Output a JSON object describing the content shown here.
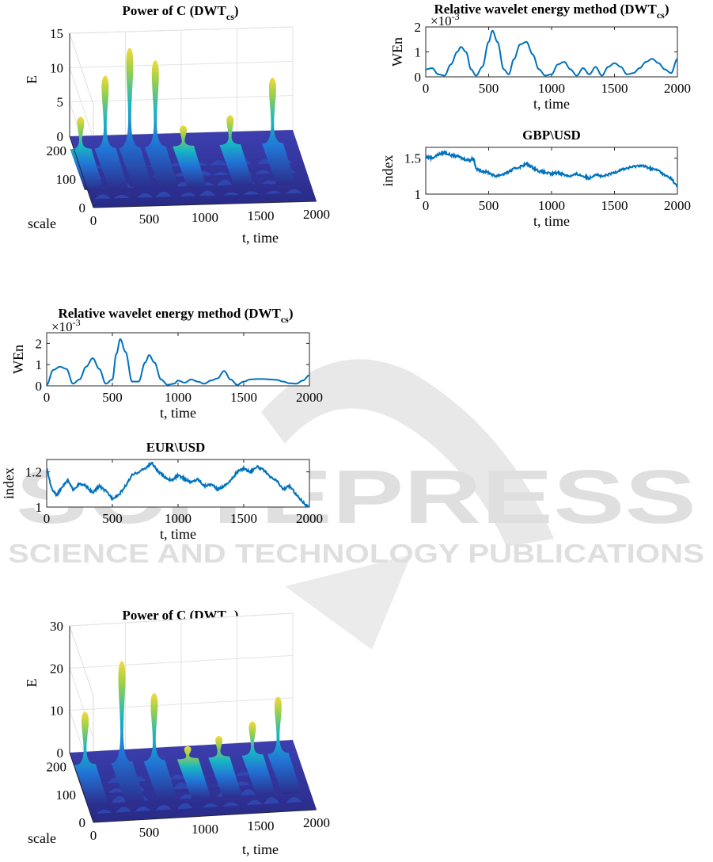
{
  "watermark": {
    "line1": "SCITEPRESS",
    "line2": "SCIENCE AND TECHNOLOGY PUBLICATIONS"
  },
  "chart_data": [
    {
      "id": "surface-top",
      "type": "surface",
      "title": "Power of C (DWT",
      "title_sub": "cs",
      "title_end": ")",
      "xlabel": "t, time",
      "ylabel": "scale",
      "zlabel": "E",
      "xlim": [
        0,
        2000
      ],
      "ylim": [
        0,
        250
      ],
      "zlim": [
        0,
        15
      ],
      "x_ticks": [
        "0",
        "500",
        "1000",
        "1500",
        "2000"
      ],
      "y_ticks": [
        "0",
        "100",
        "200"
      ],
      "z_ticks": [
        "0",
        "5",
        "10",
        "15"
      ],
      "peaks": [
        {
          "t": 60,
          "E": 4.7
        },
        {
          "t": 280,
          "E": 10.6
        },
        {
          "t": 500,
          "E": 14.5
        },
        {
          "t": 730,
          "E": 12.6
        },
        {
          "t": 980,
          "E": 3.0
        },
        {
          "t": 1400,
          "E": 4.3
        },
        {
          "t": 1780,
          "E": 9.6
        }
      ]
    },
    {
      "id": "wen-gbp",
      "type": "line",
      "title": "Relative wavelet energy method (DWT",
      "title_sub": "cs",
      "title_end": ")",
      "ylabel": "WEn",
      "xlabel": "t, time",
      "multiplier_base": "×10",
      "multiplier_exp": "-3",
      "xlim": [
        0,
        2000
      ],
      "ylim": [
        0,
        2
      ],
      "x_ticks": [
        "0",
        "500",
        "1000",
        "1500",
        "2000"
      ],
      "y_ticks": [
        "0",
        "1",
        "2"
      ],
      "x": [
        0,
        50,
        100,
        150,
        200,
        250,
        280,
        320,
        360,
        400,
        450,
        500,
        530,
        570,
        620,
        660,
        700,
        750,
        800,
        850,
        900,
        950,
        1000,
        1050,
        1100,
        1150,
        1200,
        1250,
        1300,
        1350,
        1400,
        1450,
        1500,
        1550,
        1600,
        1650,
        1700,
        1750,
        1800,
        1850,
        1900,
        1950,
        2000
      ],
      "y": [
        0.3,
        0.35,
        0.1,
        0.05,
        0.5,
        1.0,
        1.2,
        1.0,
        0.3,
        0.05,
        0.4,
        1.4,
        1.85,
        1.4,
        0.3,
        0.1,
        0.7,
        1.3,
        1.4,
        0.9,
        0.3,
        0.05,
        0.1,
        0.5,
        0.6,
        0.3,
        0.05,
        0.35,
        0.1,
        0.4,
        0.05,
        0.4,
        0.55,
        0.4,
        0.1,
        0.15,
        0.35,
        0.6,
        0.72,
        0.55,
        0.3,
        0.15,
        0.72
      ]
    },
    {
      "id": "gbp-usd",
      "type": "line",
      "title": "GBP\\USD",
      "ylabel": "index",
      "xlabel": "t, time",
      "xlim": [
        0,
        2000
      ],
      "ylim": [
        1,
        1.65
      ],
      "x_ticks": [
        "0",
        "500",
        "1000",
        "1500",
        "2000"
      ],
      "y_ticks": [
        "1",
        "1.5"
      ],
      "x": [
        0,
        50,
        100,
        150,
        200,
        250,
        300,
        350,
        380,
        400,
        450,
        500,
        550,
        600,
        650,
        700,
        750,
        800,
        850,
        900,
        950,
        1000,
        1050,
        1100,
        1150,
        1200,
        1250,
        1300,
        1350,
        1400,
        1450,
        1500,
        1550,
        1600,
        1650,
        1700,
        1750,
        1800,
        1850,
        1900,
        1950,
        2000
      ],
      "y": [
        1.52,
        1.5,
        1.55,
        1.58,
        1.54,
        1.53,
        1.49,
        1.47,
        1.5,
        1.35,
        1.32,
        1.3,
        1.25,
        1.27,
        1.3,
        1.35,
        1.38,
        1.42,
        1.37,
        1.32,
        1.3,
        1.28,
        1.3,
        1.27,
        1.25,
        1.28,
        1.25,
        1.22,
        1.28,
        1.24,
        1.27,
        1.3,
        1.34,
        1.36,
        1.38,
        1.4,
        1.38,
        1.35,
        1.33,
        1.26,
        1.22,
        1.1
      ]
    },
    {
      "id": "wen-eur",
      "type": "line",
      "title": "Relative wavelet energy method (DWT",
      "title_sub": "cs",
      "title_end": ")",
      "ylabel": "WEn",
      "xlabel": "t, time",
      "multiplier_base": "×10",
      "multiplier_exp": "-3",
      "xlim": [
        0,
        2000
      ],
      "ylim": [
        0,
        2.5
      ],
      "x_ticks": [
        "0",
        "500",
        "1000",
        "1500",
        "2000"
      ],
      "y_ticks": [
        "0",
        "1",
        "2"
      ],
      "x": [
        0,
        50,
        100,
        150,
        200,
        250,
        300,
        350,
        400,
        450,
        500,
        530,
        560,
        600,
        650,
        700,
        750,
        780,
        820,
        870,
        920,
        970,
        1000,
        1050,
        1100,
        1150,
        1200,
        1250,
        1300,
        1350,
        1400,
        1450,
        1500,
        1550,
        1600,
        1650,
        1700,
        1750,
        1800,
        1850,
        1900,
        1950,
        2000
      ],
      "y": [
        0.05,
        0.75,
        0.9,
        0.8,
        0.1,
        0.3,
        0.9,
        1.3,
        0.8,
        0.1,
        0.3,
        1.5,
        2.2,
        1.6,
        0.2,
        0.2,
        1.1,
        1.45,
        1.1,
        0.3,
        0.05,
        0.1,
        0.25,
        0.15,
        0.3,
        0.2,
        0.1,
        0.25,
        0.35,
        0.7,
        0.3,
        0.05,
        0.2,
        0.3,
        0.32,
        0.32,
        0.3,
        0.28,
        0.2,
        0.12,
        0.1,
        0.25,
        0.5
      ]
    },
    {
      "id": "eur-usd",
      "type": "line",
      "title": "EUR\\USD",
      "ylabel": "index",
      "xlabel": "t, time",
      "xlim": [
        0,
        2000
      ],
      "ylim": [
        1,
        1.27
      ],
      "x_ticks": [
        "0",
        "500",
        "1000",
        "1500",
        "2000"
      ],
      "y_ticks": [
        "1",
        "1.2"
      ],
      "x": [
        0,
        40,
        80,
        120,
        160,
        200,
        250,
        300,
        350,
        400,
        450,
        500,
        550,
        600,
        650,
        700,
        750,
        800,
        850,
        900,
        950,
        1000,
        1050,
        1100,
        1150,
        1200,
        1250,
        1300,
        1350,
        1400,
        1450,
        1500,
        1550,
        1600,
        1650,
        1700,
        1750,
        1800,
        1850,
        1900,
        1950,
        1990
      ],
      "y": [
        1.22,
        1.1,
        1.07,
        1.12,
        1.15,
        1.1,
        1.13,
        1.12,
        1.08,
        1.12,
        1.09,
        1.05,
        1.07,
        1.12,
        1.18,
        1.2,
        1.22,
        1.25,
        1.2,
        1.17,
        1.15,
        1.18,
        1.16,
        1.14,
        1.16,
        1.12,
        1.13,
        1.1,
        1.12,
        1.15,
        1.2,
        1.22,
        1.2,
        1.23,
        1.21,
        1.17,
        1.15,
        1.1,
        1.12,
        1.07,
        1.03,
        1.0
      ]
    },
    {
      "id": "surface-bottom",
      "type": "surface",
      "title": "Power of C (DWT",
      "title_sub": "cs",
      "title_end": ")",
      "xlabel": "t, time",
      "ylabel": "scale",
      "zlabel": "E",
      "xlim": [
        0,
        2000
      ],
      "ylim": [
        0,
        250
      ],
      "zlim": [
        0,
        30
      ],
      "x_ticks": [
        "0",
        "500",
        "1000",
        "1500",
        "2000"
      ],
      "y_ticks": [
        "0",
        "100",
        "200"
      ],
      "z_ticks": [
        "0",
        "10",
        "20",
        "30"
      ],
      "peaks": [
        {
          "t": 100,
          "E": 12.5
        },
        {
          "t": 430,
          "E": 24.0
        },
        {
          "t": 720,
          "E": 16.0
        },
        {
          "t": 1020,
          "E": 3.0
        },
        {
          "t": 1300,
          "E": 5.0
        },
        {
          "t": 1600,
          "E": 8.0
        },
        {
          "t": 1830,
          "E": 13.5
        }
      ]
    }
  ]
}
